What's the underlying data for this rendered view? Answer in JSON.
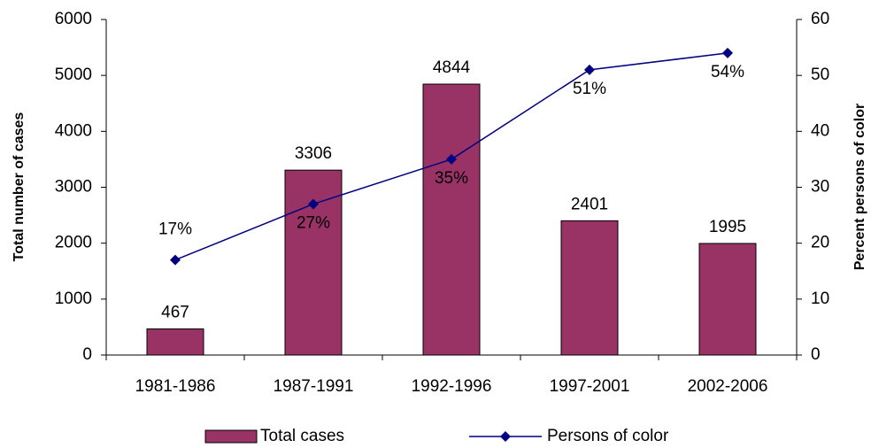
{
  "chart_data": {
    "type": "bar-line",
    "y_label": "Total number of cases",
    "y2_label": "Percent persons of color",
    "categories": [
      "1981-1986",
      "1987-1991",
      "1992-1996",
      "1997-2001",
      "2002-2006"
    ],
    "series": [
      {
        "name": "Total cases",
        "type": "bar",
        "color": "#993366",
        "values": [
          467,
          3306,
          4844,
          2401,
          1995
        ]
      },
      {
        "name": "Persons of color",
        "type": "line",
        "axis": "y2",
        "color": "#000080",
        "values": [
          17,
          27,
          35,
          51,
          54
        ],
        "value_labels": [
          "17%",
          "27%",
          "35%",
          "51%",
          "54%"
        ]
      }
    ],
    "ylim": [
      0,
      6000
    ],
    "yticks": [
      0,
      1000,
      2000,
      3000,
      4000,
      5000,
      6000
    ],
    "y2lim": [
      0,
      60
    ],
    "y2ticks": [
      0,
      10,
      20,
      30,
      40,
      50,
      60
    ],
    "legend": "bottom",
    "grid": false
  }
}
